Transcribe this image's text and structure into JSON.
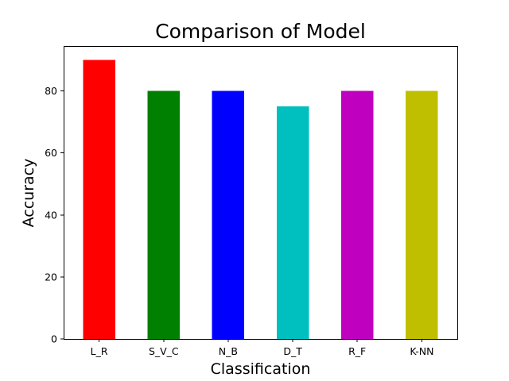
{
  "chart_data": {
    "type": "bar",
    "title": "Comparison of Model",
    "xlabel": "Classification",
    "ylabel": "Accuracy",
    "categories": [
      "L_R",
      "S_V_C",
      "N_B",
      "D_T",
      "R_F",
      "K-NN"
    ],
    "values": [
      90,
      80,
      80,
      75,
      80,
      80
    ],
    "colors": [
      "#ff0000",
      "#008000",
      "#0000ff",
      "#00bfbf",
      "#bf00bf",
      "#bfbf00"
    ],
    "ylim": [
      0,
      94.5
    ],
    "yticks": [
      0,
      20,
      40,
      60,
      80
    ],
    "grid": false,
    "legend": "none"
  }
}
